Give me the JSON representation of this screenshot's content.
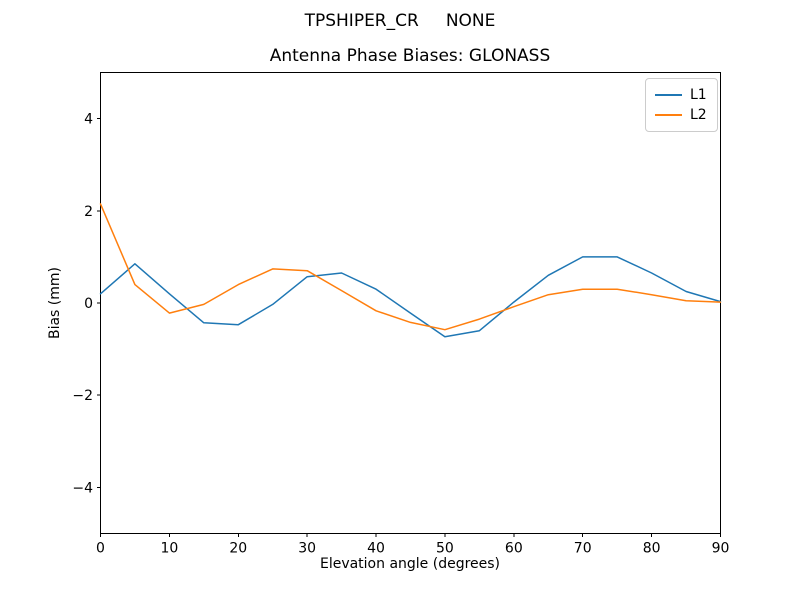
{
  "window": {
    "suptitle": "TPSHIPER_CR     NONE"
  },
  "chart_data": {
    "type": "line",
    "suptitle": "TPSHIPER_CR     NONE",
    "title": "Antenna Phase Biases: GLONASS",
    "xlabel": "Elevation angle (degrees)",
    "ylabel": "Bias (mm)",
    "xlim": [
      0,
      90
    ],
    "ylim": [
      -5,
      5
    ],
    "xticks": [
      0,
      10,
      20,
      30,
      40,
      50,
      60,
      70,
      80,
      90
    ],
    "yticks": [
      -4,
      -2,
      0,
      2,
      4
    ],
    "grid": false,
    "legend_position": "upper right",
    "x": [
      0,
      5,
      10,
      15,
      20,
      25,
      30,
      35,
      40,
      45,
      50,
      55,
      60,
      65,
      70,
      75,
      80,
      85,
      90
    ],
    "series": [
      {
        "name": "L1",
        "color": "#1f77b4",
        "values": [
          0.2,
          0.85,
          0.2,
          -0.43,
          -0.47,
          -0.03,
          0.57,
          0.65,
          0.3,
          -0.22,
          -0.73,
          -0.6,
          0.02,
          0.6,
          1.0,
          1.0,
          0.65,
          0.25,
          0.03
        ]
      },
      {
        "name": "L2",
        "color": "#ff7f0e",
        "values": [
          2.15,
          0.4,
          -0.22,
          -0.03,
          0.4,
          0.74,
          0.7,
          0.27,
          -0.17,
          -0.42,
          -0.58,
          -0.35,
          -0.08,
          0.18,
          0.3,
          0.3,
          0.18,
          0.05,
          0.02
        ]
      }
    ]
  }
}
